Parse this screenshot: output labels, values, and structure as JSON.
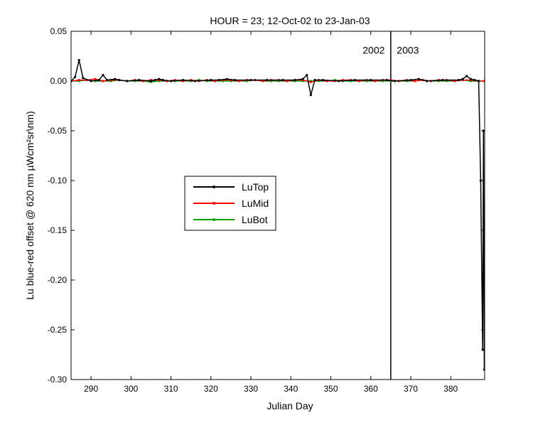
{
  "chart_data": {
    "type": "line",
    "title": "HOUR = 23; 12-Oct-02 to 23-Jan-03",
    "xlabel": "Julian Day",
    "ylabel": "Lu blue-red offset @ 620 nm µWcm²sr\\nm)",
    "xlim": [
      285,
      388.5
    ],
    "ylim": [
      -0.3,
      0.05
    ],
    "xticks": [
      290,
      300,
      310,
      320,
      330,
      340,
      350,
      360,
      370,
      380
    ],
    "xtick_labels": [
      "290",
      "300",
      "310",
      "320",
      "330",
      "340",
      "350",
      "360",
      "370",
      "380"
    ],
    "yticks": [
      -0.3,
      -0.25,
      -0.2,
      -0.15,
      -0.1,
      -0.05,
      0,
      0.05
    ],
    "ytick_labels": [
      "-0.30",
      "-0.25",
      "-0.20",
      "-0.15",
      "-0.10",
      "-0.05",
      "0.00",
      "0.05"
    ],
    "grid": false,
    "legend_position": "center-left",
    "annotations": [
      {
        "text": "2002",
        "x": 363.5,
        "y": 0.031,
        "anchor": "end"
      },
      {
        "text": "2003",
        "x": 366.5,
        "y": 0.031,
        "anchor": "start"
      }
    ],
    "vlines": [
      365
    ],
    "series": [
      {
        "name": "LuTop",
        "color": "#000000",
        "x": [
          285,
          286,
          287,
          288,
          290,
          292,
          293,
          294,
          296,
          297,
          299,
          302,
          305,
          306,
          307,
          308,
          310,
          313,
          316,
          320,
          322,
          324,
          326,
          330,
          334,
          338,
          341,
          343,
          344,
          345,
          346,
          348,
          352,
          356,
          360,
          364,
          366,
          370,
          372,
          374,
          378,
          382,
          383,
          384,
          385,
          386,
          387,
          387.5,
          388,
          388.2,
          388.4
        ],
        "y": [
          0,
          0.004,
          0.021,
          0.003,
          0,
          0.001,
          0.006,
          0.001,
          0.002,
          0.001,
          0,
          0.001,
          0,
          0.001,
          0.002,
          0.001,
          0,
          0.001,
          0,
          0.001,
          0.001,
          0.002,
          0.001,
          0.001,
          0.001,
          0.001,
          0.001,
          0.002,
          0.006,
          -0.014,
          0.001,
          0.001,
          0,
          0.001,
          0.001,
          0.001,
          0,
          0.001,
          0.002,
          0,
          0.001,
          0.001,
          0.002,
          0.005,
          0.002,
          0.001,
          0,
          -0.1,
          -0.27,
          -0.05,
          -0.29
        ]
      },
      {
        "name": "LuMid",
        "color": "#ff0000",
        "x": [
          285,
          287,
          289,
          291,
          293,
          295,
          297,
          299,
          301,
          303,
          305,
          307,
          309,
          311,
          313,
          315,
          317,
          319,
          321,
          323,
          325,
          327,
          329,
          331,
          333,
          335,
          337,
          339,
          341,
          343,
          345,
          347,
          349,
          351,
          353,
          355,
          357,
          359,
          361,
          363,
          365,
          367,
          369,
          371,
          373,
          375,
          377,
          379,
          381,
          383,
          385,
          387,
          388.4
        ],
        "y": [
          0,
          0.001,
          0.001,
          0.002,
          0,
          0.001,
          0.001,
          0,
          0.001,
          0,
          0.001,
          0.001,
          0,
          0.001,
          0,
          0.001,
          0,
          0.001,
          0,
          0.001,
          0.001,
          0,
          0.001,
          0.001,
          0,
          0.001,
          0.001,
          0,
          0.001,
          0.001,
          -0.001,
          0.001,
          0,
          0,
          0.001,
          0.001,
          0,
          0.001,
          0,
          0.001,
          0.001,
          0,
          0.001,
          0,
          0.001,
          0,
          0.001,
          0.001,
          0,
          0.001,
          0.001,
          0,
          0
        ]
      },
      {
        "name": "LuBot",
        "color": "#00a000",
        "x": [
          285,
          287,
          289,
          291,
          293,
          295,
          297,
          299,
          301,
          303,
          305,
          307,
          309,
          311,
          313,
          315,
          317,
          319,
          321,
          323,
          325,
          327,
          329,
          331,
          333,
          335,
          337,
          339,
          341,
          343,
          345,
          347,
          349,
          351,
          353,
          355,
          357,
          359,
          361,
          363,
          365,
          367,
          369,
          371,
          373,
          375,
          377,
          379,
          381,
          383,
          385,
          387,
          388.4
        ],
        "y": [
          0,
          0,
          0.001,
          0,
          0,
          0,
          0.001,
          0,
          0,
          0,
          -0.001,
          0,
          0,
          0,
          0,
          0,
          0.001,
          0,
          0,
          0,
          0,
          0,
          0,
          0.001,
          0,
          0,
          0,
          0,
          0,
          0,
          0,
          0,
          0,
          0.001,
          0,
          0,
          0,
          0,
          0,
          0,
          0,
          0,
          0,
          0,
          0.001,
          0,
          0,
          0,
          0,
          0.001,
          0,
          0,
          0
        ]
      }
    ]
  }
}
